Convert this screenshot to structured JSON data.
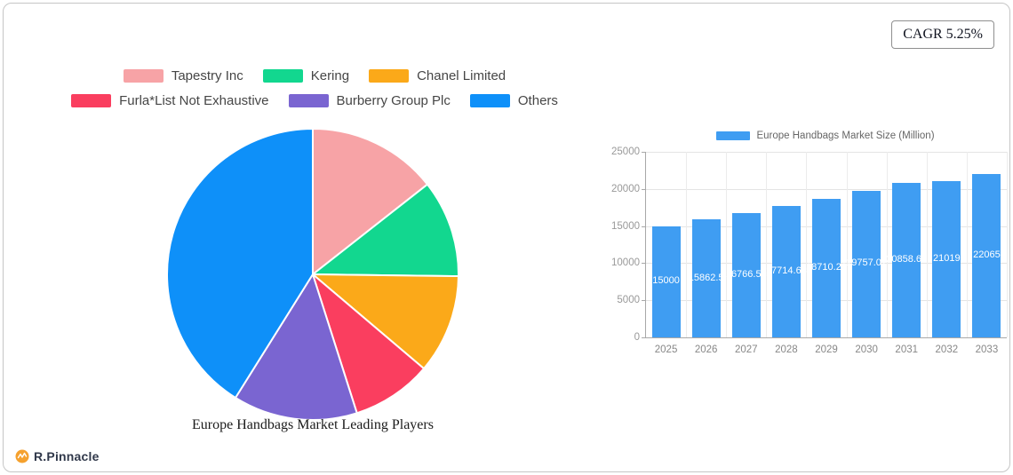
{
  "cagr_badge": {
    "label": "CAGR 5.25%"
  },
  "logo": {
    "brand": "R.Pinnacle",
    "icon": "pulse-circle-icon",
    "icon_color": "#F5A12E"
  },
  "chart_data": [
    {
      "type": "pie",
      "title": "Europe Handbags Market Leading Players",
      "legend_position": "top",
      "start_angle": "12-oclock",
      "direction": "clockwise",
      "slices": [
        {
          "label": "Tapestry Inc",
          "percent": 14.4,
          "color": "#F7A3A6"
        },
        {
          "label": "Kering",
          "percent": 10.8,
          "color": "#12D78F"
        },
        {
          "label": "Chanel Limited",
          "percent": 11.0,
          "color": "#FBA919"
        },
        {
          "label": "Furla*List Not Exhaustive",
          "percent": 8.9,
          "color": "#FA3E5F"
        },
        {
          "label": "Burberry Group Plc",
          "percent": 13.8,
          "color": "#7A65D1"
        },
        {
          "label": "Others",
          "percent": 41.1,
          "color": "#0E90F9"
        }
      ],
      "legend_rows": [
        [
          0,
          1,
          2
        ],
        [
          3,
          4,
          5
        ]
      ]
    },
    {
      "type": "bar",
      "legend": "Europe Handbags Market Size (Million)",
      "bar_color": "#3F9DF2",
      "value_label_color": "#ffffff",
      "categories": [
        "2025",
        "2026",
        "2027",
        "2028",
        "2029",
        "2030",
        "2031",
        "2032",
        "2033"
      ],
      "values": [
        15000,
        15862.5,
        16766.58,
        17714.68,
        18710.29,
        19757.07,
        20858.69,
        21019,
        22065
      ],
      "value_labels": [
        "15000",
        "15862.5",
        "16766.58",
        "17714.68",
        "18710.29",
        "19757.07",
        "20858.69",
        "21019",
        "22065"
      ],
      "ylim": [
        0,
        25000
      ],
      "yticks": [
        0,
        5000,
        10000,
        15000,
        20000,
        25000
      ],
      "grid": true,
      "legend_position": "top"
    }
  ]
}
